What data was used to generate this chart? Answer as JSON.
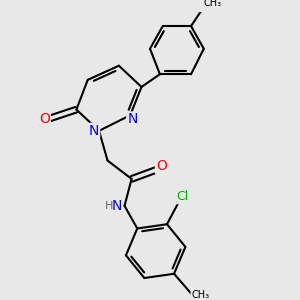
{
  "bg_color": "#e8e8e8",
  "bond_color": "#000000",
  "bond_width": 1.5,
  "atom_colors": {
    "N": "#0000ff",
    "O": "#ff0000",
    "Cl": "#00aa00",
    "H": "#666666",
    "C": "#000000"
  },
  "font_size": 8,
  "fig_size": [
    3.0,
    3.0
  ],
  "dpi": 100
}
